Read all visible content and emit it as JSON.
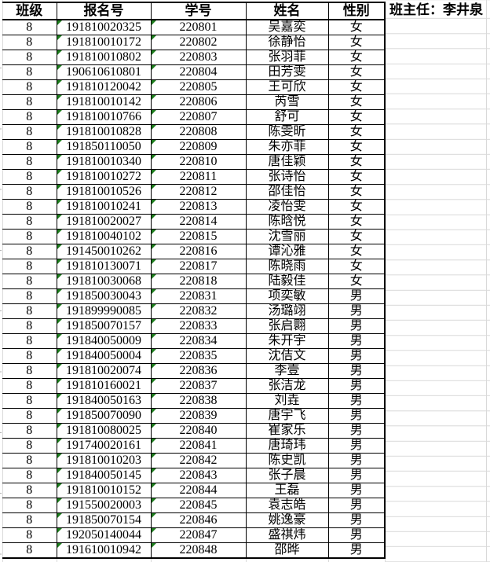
{
  "teacher_note": "班主任：李井泉",
  "columns": [
    {
      "key": "class_no",
      "label": "班级"
    },
    {
      "key": "reg_no",
      "label": "报名号"
    },
    {
      "key": "student_no",
      "label": "学号"
    },
    {
      "key": "name",
      "label": "姓名"
    },
    {
      "key": "gender",
      "label": "性别"
    }
  ],
  "number_stored_as_text_columns": [
    "reg_no",
    "student_no"
  ],
  "colors": {
    "error_indicator_green": "#1e7e1e",
    "gridline_gray": "#d9d9d9",
    "table_border": "#000000"
  },
  "rows": [
    {
      "class_no": "8",
      "reg_no": "191810020325",
      "student_no": "220801",
      "name": "吴嘉奕",
      "gender": "女"
    },
    {
      "class_no": "8",
      "reg_no": "191810010172",
      "student_no": "220802",
      "name": "徐静怡",
      "gender": "女"
    },
    {
      "class_no": "8",
      "reg_no": "191810010802",
      "student_no": "220803",
      "name": "张羽菲",
      "gender": "女"
    },
    {
      "class_no": "8",
      "reg_no": "190610610801",
      "student_no": "220804",
      "name": "田芳雯",
      "gender": "女"
    },
    {
      "class_no": "8",
      "reg_no": "191810120042",
      "student_no": "220805",
      "name": "王可欣",
      "gender": "女"
    },
    {
      "class_no": "8",
      "reg_no": "191810010142",
      "student_no": "220806",
      "name": "芮雪",
      "gender": "女"
    },
    {
      "class_no": "8",
      "reg_no": "191810010766",
      "student_no": "220807",
      "name": "舒可",
      "gender": "女"
    },
    {
      "class_no": "8",
      "reg_no": "191810010828",
      "student_no": "220808",
      "name": "陈雯昕",
      "gender": "女"
    },
    {
      "class_no": "8",
      "reg_no": "191850110050",
      "student_no": "220809",
      "name": "朱亦菲",
      "gender": "女"
    },
    {
      "class_no": "8",
      "reg_no": "191810010340",
      "student_no": "220810",
      "name": "唐佳颖",
      "gender": "女"
    },
    {
      "class_no": "8",
      "reg_no": "191810010272",
      "student_no": "220811",
      "name": "张诗怡",
      "gender": "女"
    },
    {
      "class_no": "8",
      "reg_no": "191810010526",
      "student_no": "220812",
      "name": "邵佳怡",
      "gender": "女"
    },
    {
      "class_no": "8",
      "reg_no": "191810010241",
      "student_no": "220813",
      "name": "凌怡雯",
      "gender": "女"
    },
    {
      "class_no": "8",
      "reg_no": "191810020027",
      "student_no": "220814",
      "name": "陈晗悦",
      "gender": "女"
    },
    {
      "class_no": "8",
      "reg_no": "191810040102",
      "student_no": "220815",
      "name": "沈雪丽",
      "gender": "女"
    },
    {
      "class_no": "8",
      "reg_no": "191450010262",
      "student_no": "220816",
      "name": "谭沁雅",
      "gender": "女"
    },
    {
      "class_no": "8",
      "reg_no": "191810130071",
      "student_no": "220817",
      "name": "陈晓雨",
      "gender": "女"
    },
    {
      "class_no": "8",
      "reg_no": "191810030068",
      "student_no": "220818",
      "name": "陆毅佳",
      "gender": "女"
    },
    {
      "class_no": "8",
      "reg_no": "191850030043",
      "student_no": "220831",
      "name": "项奕敏",
      "gender": "男"
    },
    {
      "class_no": "8",
      "reg_no": "191899990085",
      "student_no": "220832",
      "name": "汤璐翊",
      "gender": "男"
    },
    {
      "class_no": "8",
      "reg_no": "191850070157",
      "student_no": "220833",
      "name": "张启翾",
      "gender": "男"
    },
    {
      "class_no": "8",
      "reg_no": "191840050009",
      "student_no": "220834",
      "name": "朱开宇",
      "gender": "男"
    },
    {
      "class_no": "8",
      "reg_no": "191840050004",
      "student_no": "220835",
      "name": "沈佶文",
      "gender": "男"
    },
    {
      "class_no": "8",
      "reg_no": "191810020074",
      "student_no": "220836",
      "name": "李壹",
      "gender": "男"
    },
    {
      "class_no": "8",
      "reg_no": "191810160021",
      "student_no": "220837",
      "name": "张洁龙",
      "gender": "男"
    },
    {
      "class_no": "8",
      "reg_no": "191840050163",
      "student_no": "220838",
      "name": "刘垚",
      "gender": "男"
    },
    {
      "class_no": "8",
      "reg_no": "191850070090",
      "student_no": "220839",
      "name": "唐宇飞",
      "gender": "男"
    },
    {
      "class_no": "8",
      "reg_no": "191810080025",
      "student_no": "220840",
      "name": "崔家乐",
      "gender": "男"
    },
    {
      "class_no": "8",
      "reg_no": "191740020161",
      "student_no": "220841",
      "name": "唐琦玮",
      "gender": "男"
    },
    {
      "class_no": "8",
      "reg_no": "191810010203",
      "student_no": "220842",
      "name": "陈史凯",
      "gender": "男"
    },
    {
      "class_no": "8",
      "reg_no": "191840050145",
      "student_no": "220843",
      "name": "张子晨",
      "gender": "男"
    },
    {
      "class_no": "8",
      "reg_no": "191810010152",
      "student_no": "220844",
      "name": "王磊",
      "gender": "男"
    },
    {
      "class_no": "8",
      "reg_no": "191550020003",
      "student_no": "220845",
      "name": "袁志皓",
      "gender": "男"
    },
    {
      "class_no": "8",
      "reg_no": "191850070154",
      "student_no": "220846",
      "name": "姚逸豪",
      "gender": "男"
    },
    {
      "class_no": "8",
      "reg_no": "192050140044",
      "student_no": "220847",
      "name": "盛祺炜",
      "gender": "男"
    },
    {
      "class_no": "8",
      "reg_no": "191610010942",
      "student_no": "220848",
      "name": "邵晔",
      "gender": "男"
    }
  ]
}
